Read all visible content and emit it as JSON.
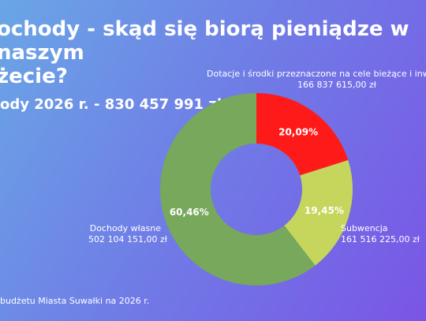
{
  "title": "ochody - skąd się biorą pieniądze w naszym\nżecie?",
  "total": "ody 2026 r. - 830 457 991 zł",
  "footer": "budżetu Miasta Suwałki na 2026 r.",
  "chart_data": {
    "type": "pie",
    "donut": true,
    "total_label": "ody 2026 r. - 830 457 991 zł",
    "slices": [
      {
        "name": "Dotacje i środki przeznaczone na cele bieżące i inwe",
        "amount": "166 837 615,00 zł",
        "percent_label": "20,09%",
        "value": 20.09,
        "color": "#ff1a1a"
      },
      {
        "name": "Subwencja",
        "amount": "161 516 225,00 zł",
        "percent_label": "19,45%",
        "value": 19.45,
        "color": "#c6d65c"
      },
      {
        "name": "Dochody własne",
        "amount": "502 104 151,00 zł",
        "percent_label": "60,46%",
        "value": 60.46,
        "color": "#77a85b"
      }
    ]
  }
}
